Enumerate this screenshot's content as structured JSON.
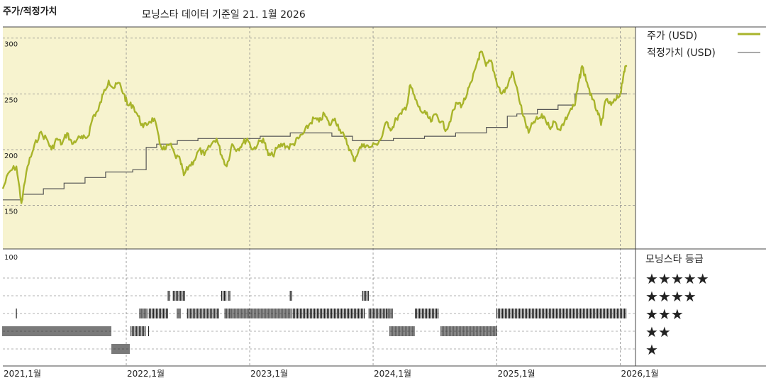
{
  "header": {
    "left_title": "주가/적정가치",
    "subtitle": "모닝스타 데이터 기준일 21. 1월 2026"
  },
  "colors": {
    "price": "#a8b42a",
    "fair_value": "#555555",
    "plot_bg": "#f7f3cf",
    "grid": "#888888"
  },
  "chart_data": [
    {
      "type": "line",
      "title": "주가/적정가치",
      "y_ticks": [
        150,
        200,
        250,
        300
      ],
      "ylim": [
        111,
        310
      ],
      "xlim": [
        "2021-01-01",
        "2026-02-15"
      ],
      "x_tick_labels": [
        "2021,1월",
        "2022,1월",
        "2023,1월",
        "2024,1월",
        "2025,1월",
        "2026,1월"
      ],
      "legend_position": "right",
      "series": [
        {
          "name": "주가 (USD)",
          "points": [
            [
              "2021-01-01",
              165
            ],
            [
              "2021-01-20",
              180
            ],
            [
              "2021-02-10",
              185
            ],
            [
              "2021-02-25",
              152
            ],
            [
              "2021-03-15",
              185
            ],
            [
              "2021-04-01",
              200
            ],
            [
              "2021-04-20",
              215
            ],
            [
              "2021-05-10",
              210
            ],
            [
              "2021-05-25",
              200
            ],
            [
              "2021-06-10",
              210
            ],
            [
              "2021-06-25",
              205
            ],
            [
              "2021-07-10",
              215
            ],
            [
              "2021-07-25",
              205
            ],
            [
              "2021-08-10",
              210
            ],
            [
              "2021-08-25",
              210
            ],
            [
              "2021-09-10",
              212
            ],
            [
              "2021-09-25",
              230
            ],
            [
              "2021-10-10",
              235
            ],
            [
              "2021-10-25",
              250
            ],
            [
              "2021-11-10",
              262
            ],
            [
              "2021-11-25",
              255
            ],
            [
              "2021-12-10",
              260
            ],
            [
              "2021-12-25",
              250
            ],
            [
              "2022-01-05",
              240
            ],
            [
              "2022-01-20",
              240
            ],
            [
              "2022-02-05",
              230
            ],
            [
              "2022-02-20",
              220
            ],
            [
              "2022-03-10",
              225
            ],
            [
              "2022-03-25",
              228
            ],
            [
              "2022-04-10",
              205
            ],
            [
              "2022-04-25",
              200
            ],
            [
              "2022-05-10",
              205
            ],
            [
              "2022-05-25",
              195
            ],
            [
              "2022-06-10",
              190
            ],
            [
              "2022-06-20",
              177
            ],
            [
              "2022-07-05",
              185
            ],
            [
              "2022-07-20",
              190
            ],
            [
              "2022-08-05",
              200
            ],
            [
              "2022-08-20",
              195
            ],
            [
              "2022-09-10",
              205
            ],
            [
              "2022-09-25",
              210
            ],
            [
              "2022-10-10",
              195
            ],
            [
              "2022-10-25",
              185
            ],
            [
              "2022-11-10",
              205
            ],
            [
              "2022-11-25",
              200
            ],
            [
              "2022-12-10",
              205
            ],
            [
              "2022-12-25",
              210
            ],
            [
              "2023-01-10",
              200
            ],
            [
              "2023-01-25",
              205
            ],
            [
              "2023-02-10",
              210
            ],
            [
              "2023-02-25",
              195
            ],
            [
              "2023-03-10",
              195
            ],
            [
              "2023-03-25",
              202
            ],
            [
              "2023-04-10",
              205
            ],
            [
              "2023-04-25",
              202
            ],
            [
              "2023-05-10",
              205
            ],
            [
              "2023-05-25",
              210
            ],
            [
              "2023-06-10",
              215
            ],
            [
              "2023-06-25",
              222
            ],
            [
              "2023-07-10",
              228
            ],
            [
              "2023-07-25",
              225
            ],
            [
              "2023-08-10",
              232
            ],
            [
              "2023-08-25",
              222
            ],
            [
              "2023-09-10",
              228
            ],
            [
              "2023-09-25",
              218
            ],
            [
              "2023-10-10",
              210
            ],
            [
              "2023-10-25",
              200
            ],
            [
              "2023-11-05",
              190
            ],
            [
              "2023-11-20",
              200
            ],
            [
              "2023-12-05",
              205
            ],
            [
              "2023-12-20",
              202
            ],
            [
              "2024-01-10",
              205
            ],
            [
              "2024-01-25",
              210
            ],
            [
              "2024-02-10",
              225
            ],
            [
              "2024-02-25",
              218
            ],
            [
              "2024-03-10",
              228
            ],
            [
              "2024-03-25",
              232
            ],
            [
              "2024-04-10",
              240
            ],
            [
              "2024-04-20",
              258
            ],
            [
              "2024-05-05",
              245
            ],
            [
              "2024-05-20",
              235
            ],
            [
              "2024-06-05",
              232
            ],
            [
              "2024-06-20",
              225
            ],
            [
              "2024-07-05",
              232
            ],
            [
              "2024-07-20",
              225
            ],
            [
              "2024-08-05",
              218
            ],
            [
              "2024-08-20",
              230
            ],
            [
              "2024-09-05",
              242
            ],
            [
              "2024-09-20",
              240
            ],
            [
              "2024-10-05",
              250
            ],
            [
              "2024-10-20",
              262
            ],
            [
              "2024-11-05",
              280
            ],
            [
              "2024-11-15",
              288
            ],
            [
              "2024-11-30",
              275
            ],
            [
              "2024-12-15",
              280
            ],
            [
              "2024-12-30",
              262
            ],
            [
              "2025-01-15",
              250
            ],
            [
              "2025-01-30",
              255
            ],
            [
              "2025-02-15",
              270
            ],
            [
              "2025-03-05",
              250
            ],
            [
              "2025-03-20",
              230
            ],
            [
              "2025-04-05",
              215
            ],
            [
              "2025-04-20",
              225
            ],
            [
              "2025-05-05",
              228
            ],
            [
              "2025-05-20",
              230
            ],
            [
              "2025-06-05",
              220
            ],
            [
              "2025-06-20",
              225
            ],
            [
              "2025-07-05",
              218
            ],
            [
              "2025-07-20",
              225
            ],
            [
              "2025-08-05",
              235
            ],
            [
              "2025-08-20",
              240
            ],
            [
              "2025-09-01",
              262
            ],
            [
              "2025-09-10",
              275
            ],
            [
              "2025-09-25",
              260
            ],
            [
              "2025-10-10",
              245
            ],
            [
              "2025-10-25",
              235
            ],
            [
              "2025-11-05",
              222
            ],
            [
              "2025-11-20",
              245
            ],
            [
              "2025-12-05",
              240
            ],
            [
              "2025-12-20",
              245
            ],
            [
              "2026-01-01",
              250
            ],
            [
              "2026-01-12",
              270
            ],
            [
              "2026-01-21",
              275
            ]
          ]
        },
        {
          "name": "적정가치 (USD)",
          "steps": [
            [
              "2021-01-01",
              155
            ],
            [
              "2021-03-01",
              160
            ],
            [
              "2021-05-01",
              165
            ],
            [
              "2021-07-01",
              170
            ],
            [
              "2021-09-01",
              175
            ],
            [
              "2021-11-01",
              180
            ],
            [
              "2022-01-20",
              182
            ],
            [
              "2022-03-01",
              202
            ],
            [
              "2022-04-01",
              205
            ],
            [
              "2022-06-01",
              208
            ],
            [
              "2022-08-01",
              210
            ],
            [
              "2023-02-01",
              212
            ],
            [
              "2023-05-01",
              215
            ],
            [
              "2023-09-01",
              212
            ],
            [
              "2023-11-01",
              208
            ],
            [
              "2024-01-01",
              208
            ],
            [
              "2024-03-01",
              210
            ],
            [
              "2024-06-01",
              212
            ],
            [
              "2024-09-01",
              215
            ],
            [
              "2024-12-01",
              220
            ],
            [
              "2025-02-01",
              230
            ],
            [
              "2025-03-01",
              232
            ],
            [
              "2025-05-01",
              236
            ],
            [
              "2025-07-01",
              240
            ],
            [
              "2025-08-20",
              250
            ],
            [
              "2026-01-21",
              250
            ]
          ]
        }
      ]
    },
    {
      "type": "heatmap",
      "title": "모닝스타 등급",
      "y_tick_labels": [
        "100"
      ],
      "row_labels": [
        "★★★★★",
        "★★★★",
        "★★★",
        "★★",
        "★"
      ],
      "ratings": [
        {
          "from": "2021-01-01",
          "to": "2021-11-20",
          "stars": 2
        },
        {
          "from": "2021-02-10",
          "to": "2021-02-12",
          "stars": 3
        },
        {
          "from": "2021-11-20",
          "to": "2022-01-12",
          "stars": 1
        },
        {
          "from": "2022-01-15",
          "to": "2022-03-01",
          "stars": 2
        },
        {
          "from": "2022-03-08",
          "to": "2022-03-12",
          "stars": 2
        },
        {
          "from": "2022-02-10",
          "to": "2022-03-05",
          "stars": 3
        },
        {
          "from": "2022-03-10",
          "to": "2022-05-05",
          "stars": 3
        },
        {
          "from": "2022-05-05",
          "to": "2022-05-10",
          "stars": 4
        },
        {
          "from": "2022-05-20",
          "to": "2022-06-25",
          "stars": 4
        },
        {
          "from": "2022-06-01",
          "to": "2022-06-10",
          "stars": 3
        },
        {
          "from": "2022-07-01",
          "to": "2022-10-05",
          "stars": 3
        },
        {
          "from": "2022-10-10",
          "to": "2022-10-25",
          "stars": 4
        },
        {
          "from": "2022-10-20",
          "to": "2022-11-05",
          "stars": 3
        },
        {
          "from": "2022-10-30",
          "to": "2022-11-05",
          "stars": 4
        },
        {
          "from": "2022-11-05",
          "to": "2023-05-01",
          "stars": 3
        },
        {
          "from": "2023-05-01",
          "to": "2023-05-06",
          "stars": 4
        },
        {
          "from": "2023-05-06",
          "to": "2023-12-10",
          "stars": 3
        },
        {
          "from": "2023-12-01",
          "to": "2023-12-20",
          "stars": 4
        },
        {
          "from": "2023-12-20",
          "to": "2024-02-10",
          "stars": 3
        },
        {
          "from": "2024-02-10",
          "to": "2024-02-28",
          "stars": 3
        },
        {
          "from": "2024-02-20",
          "to": "2024-05-05",
          "stars": 2
        },
        {
          "from": "2024-05-05",
          "to": "2024-07-15",
          "stars": 3
        },
        {
          "from": "2024-07-20",
          "to": "2025-01-01",
          "stars": 2
        },
        {
          "from": "2025-01-01",
          "to": "2026-01-21",
          "stars": 3
        }
      ]
    }
  ]
}
